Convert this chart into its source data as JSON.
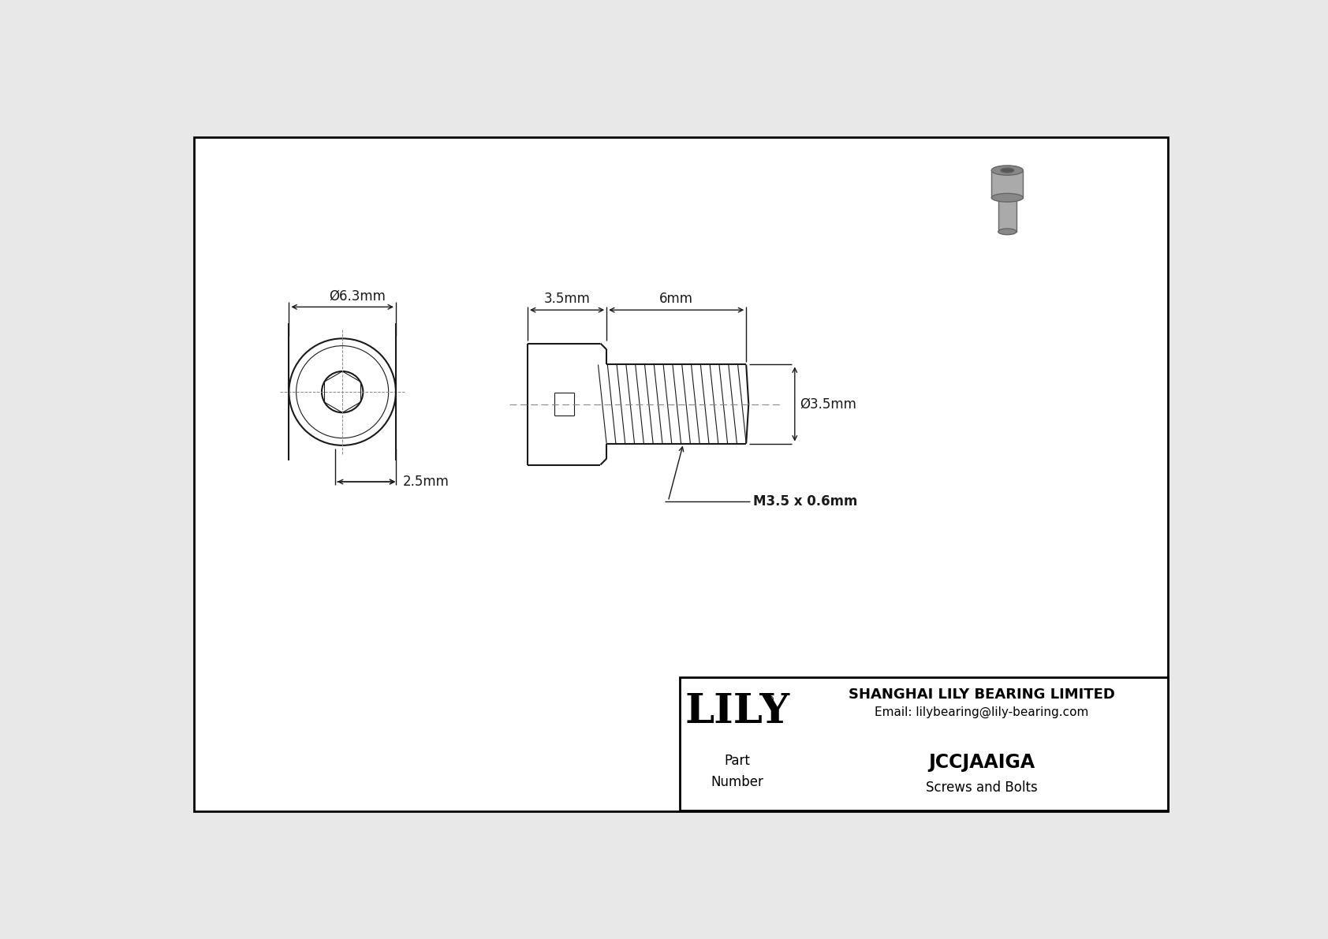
{
  "bg_color": "#e8e8e8",
  "drawing_bg": "#ffffff",
  "border_color": "#000000",
  "line_color": "#1a1a1a",
  "dim_color": "#1a1a1a",
  "title_company": "SHANGHAI LILY BEARING LIMITED",
  "title_email": "Email: lilybearing@lily-bearing.com",
  "part_number": "JCCJAAIGA",
  "part_category": "Screws and Bolts",
  "part_label": "Part\nNumber",
  "dim_diameter_head": "Ø6.3mm",
  "dim_head_length": "3.5mm",
  "dim_shaft_length": "6mm",
  "dim_shaft_dia": "Ø3.5mm",
  "dim_thread": "M3.5 x 0.6mm",
  "dim_socket_depth": "2.5mm",
  "lily_logo": "LILY",
  "lily_reg": "®"
}
